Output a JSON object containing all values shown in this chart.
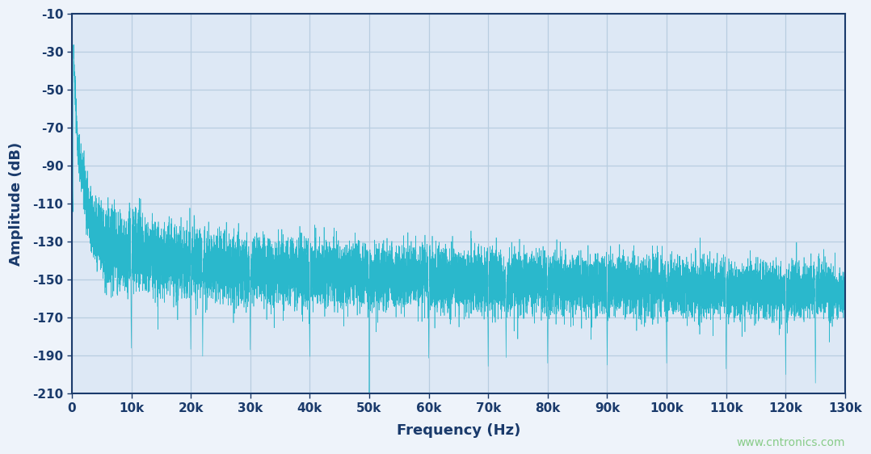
{
  "title": "",
  "xlabel": "Frequency (Hz)",
  "ylabel": "Amplitude (dB)",
  "xlim": [
    0,
    130000
  ],
  "ylim": [
    -210,
    -10
  ],
  "xtick_values": [
    0,
    10000,
    20000,
    30000,
    40000,
    50000,
    60000,
    70000,
    80000,
    90000,
    100000,
    110000,
    120000,
    130000
  ],
  "xtick_labels": [
    "0",
    "10k",
    "20k",
    "30k",
    "40k",
    "50k",
    "60k",
    "70k",
    "80k",
    "90k",
    "100k",
    "110k",
    "120k",
    "130k"
  ],
  "ytick_values": [
    -210,
    -190,
    -170,
    -150,
    -130,
    -110,
    -90,
    -70,
    -50,
    -30,
    -10
  ],
  "signal_color": "#2ab8cc",
  "background_color": "#eef3fa",
  "plot_bg_color": "#dde8f5",
  "grid_color": "#b8cde0",
  "axis_color": "#1a3a6b",
  "watermark": "www.cntronics.com",
  "watermark_color": "#88cc88",
  "fig_width": 10.78,
  "fig_height": 5.62,
  "dpi": 100
}
